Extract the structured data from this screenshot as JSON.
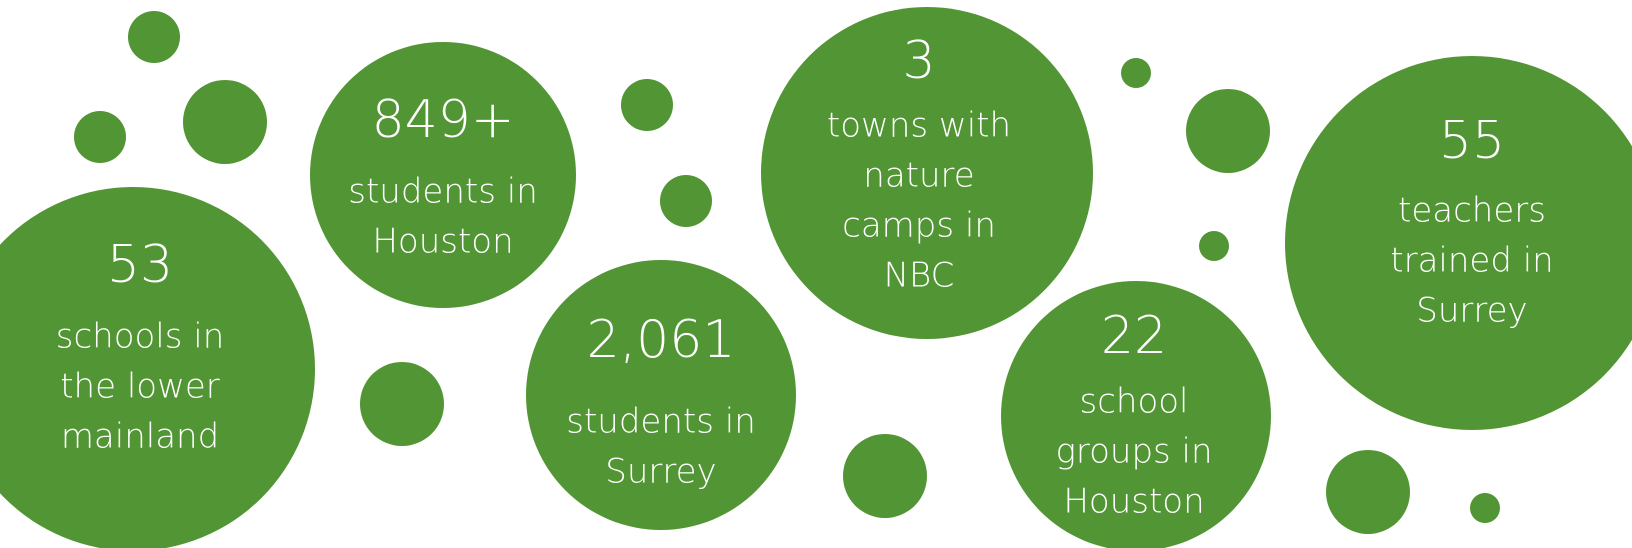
{
  "stats": [
    {
      "number": "53",
      "lines": [
        "schools in",
        "the lower",
        "mainland"
      ]
    },
    {
      "number": "849+",
      "lines": [
        "students in",
        "Houston"
      ]
    },
    {
      "number": "2,061",
      "lines": [
        "students in",
        "Surrey"
      ]
    },
    {
      "number": "3",
      "lines": [
        "towns with",
        "nature",
        "camps in",
        "NBC"
      ]
    },
    {
      "number": "22",
      "lines": [
        "school",
        "groups in",
        "Houston"
      ]
    },
    {
      "number": "55",
      "lines": [
        "teachers",
        "trained in",
        "Surrey"
      ]
    }
  ]
}
